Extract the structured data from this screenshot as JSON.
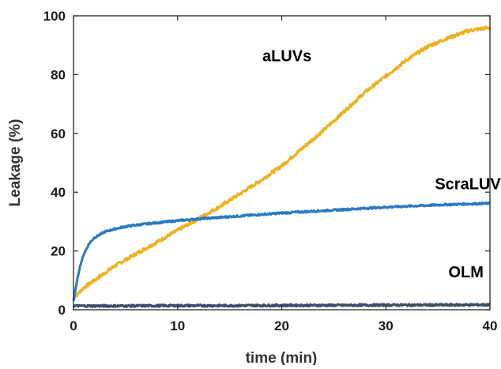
{
  "chart_data": {
    "type": "line",
    "xlabel": "time (min)",
    "ylabel": "Leakage (%)",
    "xlim": [
      0,
      40
    ],
    "ylim": [
      0,
      100
    ],
    "xticks": [
      0,
      10,
      20,
      30,
      40
    ],
    "yticks": [
      0,
      20,
      40,
      60,
      80,
      100
    ],
    "grid": false,
    "legend": "inline labels",
    "series": [
      {
        "name": "aLUVs",
        "color": "#EDB120",
        "label_anchor": [
          20.5,
          84.5
        ],
        "x": [
          0,
          1,
          2,
          3,
          4,
          5,
          6,
          8,
          10,
          12,
          14,
          16,
          18,
          20,
          22,
          24,
          26,
          28,
          30,
          32,
          34,
          36,
          38,
          40
        ],
        "y": [
          4,
          7.5,
          10,
          12.5,
          15,
          17,
          19,
          23,
          27,
          31,
          35,
          39.5,
          44,
          49,
          55,
          61,
          67.5,
          74,
          79.5,
          85,
          89.5,
          92.5,
          95,
          96
        ]
      },
      {
        "name": "ScraLUVs",
        "color": "#2B79C2",
        "label_anchor": [
          38.3,
          41
        ],
        "x": [
          0,
          0.3,
          0.6,
          1,
          1.5,
          2,
          3,
          4,
          5,
          6,
          8,
          10,
          12,
          14,
          16,
          18,
          20,
          22,
          24,
          26,
          28,
          30,
          32,
          34,
          36,
          38,
          40
        ],
        "y": [
          3,
          9,
          14.5,
          19,
          22.5,
          24.5,
          26.5,
          27.5,
          28.3,
          28.8,
          29.6,
          30.3,
          30.9,
          31.4,
          31.9,
          32.4,
          32.9,
          33.3,
          33.7,
          34.1,
          34.5,
          34.9,
          35.2,
          35.5,
          35.8,
          36,
          36.2
        ]
      },
      {
        "name": "OLM",
        "color": "#3A4E66",
        "label_anchor": [
          37.7,
          11
        ],
        "x": [
          0,
          5,
          10,
          15,
          20,
          25,
          30,
          35,
          40
        ],
        "y": [
          1.3,
          1.3,
          1.4,
          1.4,
          1.5,
          1.5,
          1.6,
          1.6,
          1.7
        ]
      }
    ]
  }
}
